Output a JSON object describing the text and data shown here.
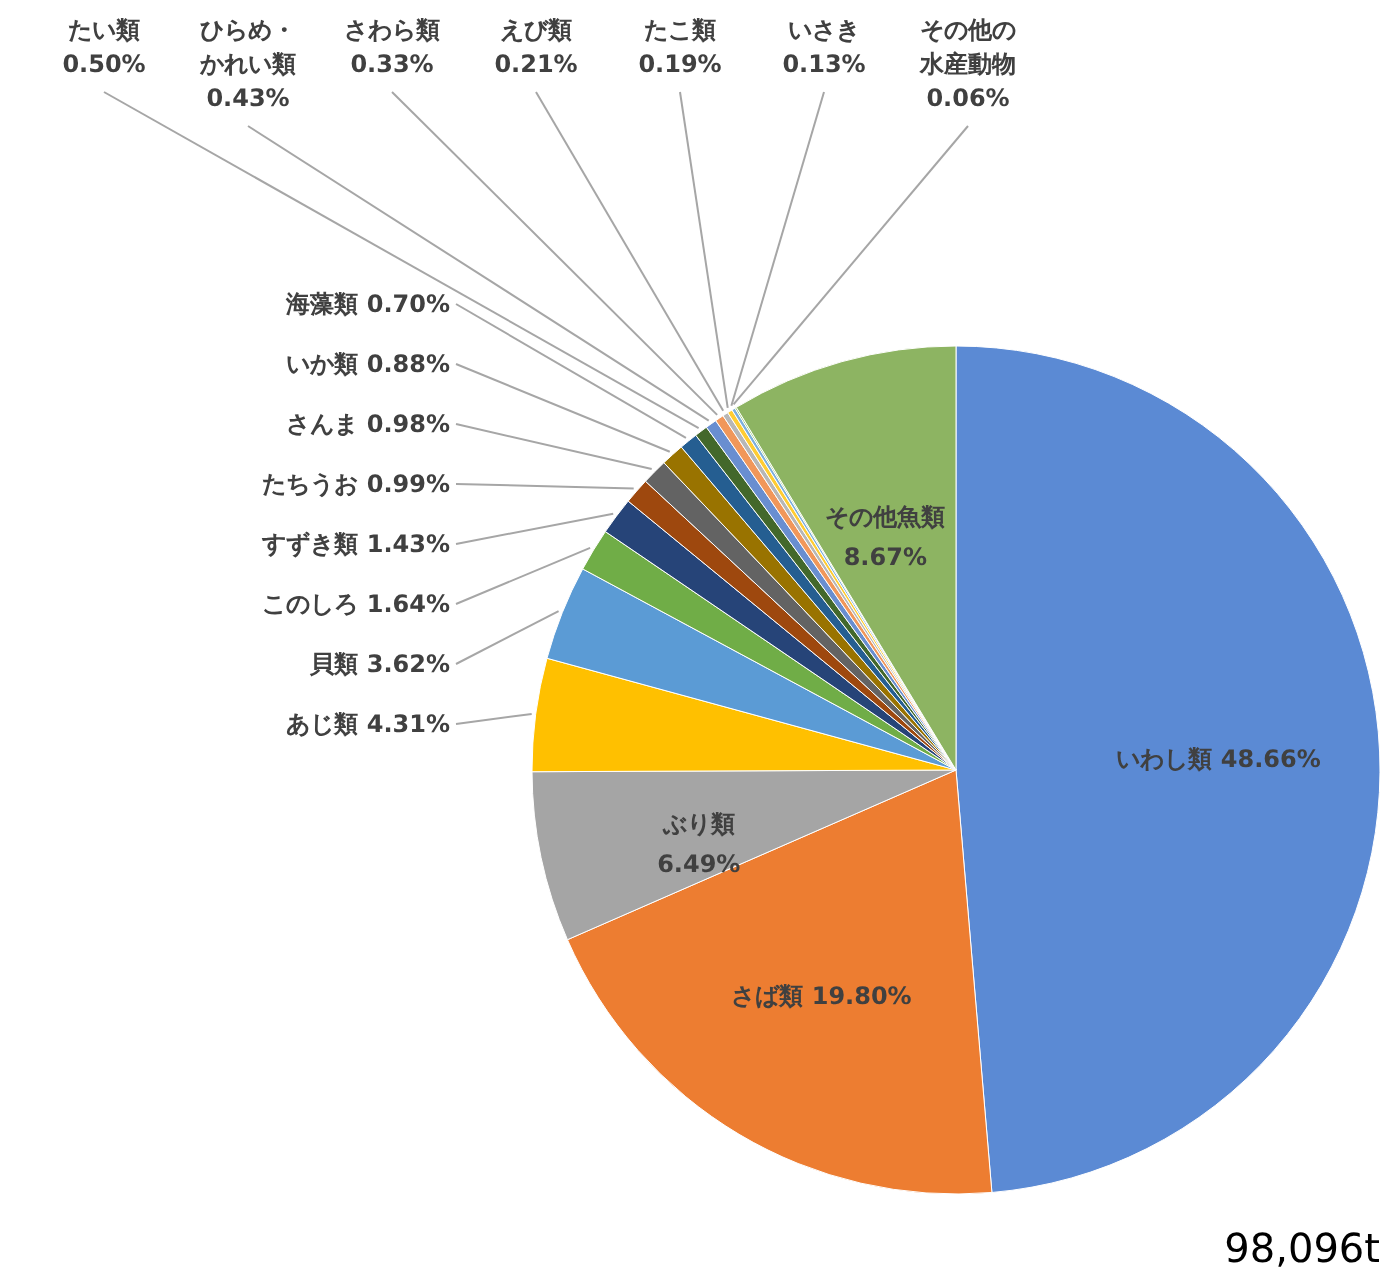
{
  "chart_data": {
    "type": "pie",
    "categories": [
      "いわし類",
      "さば類",
      "ぶり類",
      "あじ類",
      "貝類",
      "このしろ",
      "すずき類",
      "たちうお",
      "さんま",
      "いか類",
      "海藻類",
      "たい類",
      "ひらめ・かれい類",
      "さわら類",
      "えび類",
      "たこ類",
      "いさき",
      "その他の水産動物",
      "その他魚類"
    ],
    "values": [
      48.66,
      19.8,
      6.49,
      4.31,
      3.62,
      1.64,
      1.43,
      0.99,
      0.98,
      0.88,
      0.7,
      0.5,
      0.43,
      0.33,
      0.21,
      0.19,
      0.13,
      0.06,
      8.67
    ],
    "value_labels": [
      "48.66%",
      "19.80%",
      "6.49%",
      "4.31%",
      "3.62%",
      "1.64%",
      "1.43%",
      "0.99%",
      "0.98%",
      "0.88%",
      "0.70%",
      "0.50%",
      "0.43%",
      "0.33%",
      "0.21%",
      "0.19%",
      "0.13%",
      "0.06%",
      "8.67%"
    ],
    "colors": [
      "#5b8ad4",
      "#ed7d31",
      "#a5a5a5",
      "#ffc000",
      "#5b9bd5",
      "#70ad47",
      "#264478",
      "#9e480e",
      "#636363",
      "#997300",
      "#255e91",
      "#43682b",
      "#698ed0",
      "#f1975a",
      "#b7b7b7",
      "#ffcd33",
      "#7cafdd",
      "#8cc168",
      "#8db462"
    ],
    "annotations": [
      "98,096t"
    ]
  }
}
